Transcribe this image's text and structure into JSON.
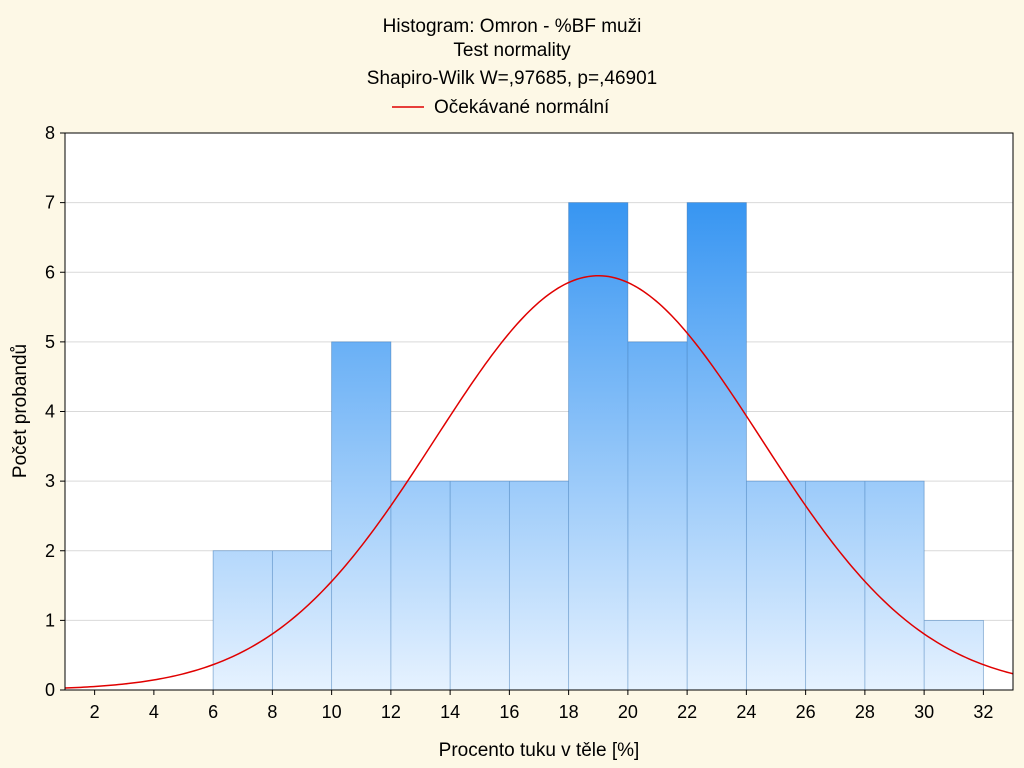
{
  "chart_data": {
    "type": "bar",
    "subtype": "histogram",
    "title_lines": [
      "Histogram: Omron - %BF muži",
      "Test normality",
      "Shapiro-Wilk W=,97685, p=,46901"
    ],
    "legend": {
      "label": "Očekávané normální",
      "color": "#e00000",
      "placement": "top-center"
    },
    "xlabel": "Procento tuku v těle [%]",
    "ylabel": "Počet probandů",
    "xlim": [
      1,
      33
    ],
    "ylim": [
      0,
      8
    ],
    "xticks": [
      2,
      4,
      6,
      8,
      10,
      12,
      14,
      16,
      18,
      20,
      22,
      24,
      26,
      28,
      30,
      32
    ],
    "yticks": [
      0,
      1,
      2,
      3,
      4,
      5,
      6,
      7,
      8
    ],
    "grid": {
      "horizontal": true,
      "vertical": false
    },
    "bins": [
      {
        "start": 6,
        "end": 8,
        "count": 2
      },
      {
        "start": 8,
        "end": 10,
        "count": 2
      },
      {
        "start": 10,
        "end": 12,
        "count": 5
      },
      {
        "start": 12,
        "end": 14,
        "count": 3
      },
      {
        "start": 14,
        "end": 16,
        "count": 3
      },
      {
        "start": 16,
        "end": 18,
        "count": 3
      },
      {
        "start": 18,
        "end": 20,
        "count": 7
      },
      {
        "start": 20,
        "end": 22,
        "count": 5
      },
      {
        "start": 22,
        "end": 24,
        "count": 7
      },
      {
        "start": 24,
        "end": 26,
        "count": 3
      },
      {
        "start": 26,
        "end": 28,
        "count": 3
      },
      {
        "start": 28,
        "end": 30,
        "count": 3
      },
      {
        "start": 30,
        "end": 32,
        "count": 1
      }
    ],
    "normal_curve": {
      "name": "Očekávané normální",
      "mean": 19.0,
      "sd": 5.5,
      "peak": 5.95,
      "color": "#e00000"
    },
    "colors": {
      "background": "#fdf8e6",
      "plot_background": "#ffffff",
      "bar_top": "#1e88f0",
      "bar_bottom": "#e6f2ff",
      "bar_edge": "#2f6fb0",
      "grid": "#d9d9d9"
    }
  }
}
